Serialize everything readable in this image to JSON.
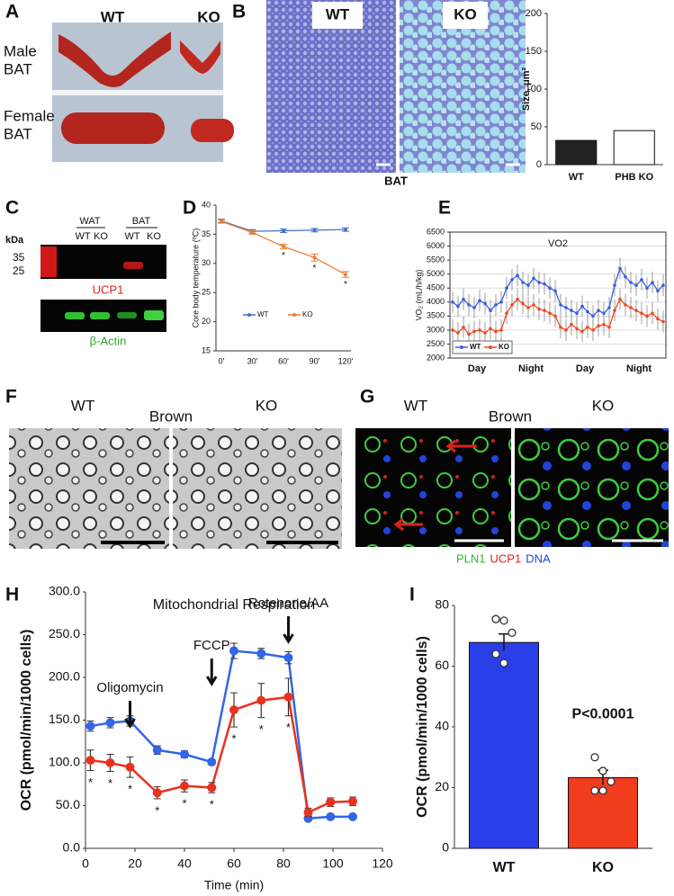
{
  "panel_labels": [
    "A",
    "B",
    "C",
    "D",
    "E",
    "F",
    "G",
    "H",
    "I"
  ],
  "panel_a": {
    "columns": [
      "WT",
      "KO"
    ],
    "rows": [
      [
        "Male",
        "BAT"
      ],
      [
        "Female",
        "BAT"
      ]
    ]
  },
  "panel_b": {
    "image_labels": [
      "WT",
      "KO"
    ],
    "caption": "BAT"
  },
  "panel_c": {
    "unit": "kDa",
    "markers": [
      "35",
      "25"
    ],
    "groups": [
      "WAT",
      "BAT"
    ],
    "lanes": [
      "WT",
      "KO",
      "WT",
      "KO"
    ],
    "blots": [
      "UCP1",
      "β-Actin"
    ]
  },
  "panel_f": {
    "labels": [
      "WT",
      "KO"
    ],
    "title": "Brown"
  },
  "panel_g": {
    "labels": [
      "WT",
      "KO"
    ],
    "title": "Brown",
    "stains": [
      {
        "text": "PLN1",
        "color": "#2eb82e"
      },
      {
        "text": "UCP1",
        "color": "#e0201b"
      },
      {
        "text": "DNA",
        "color": "#2244dd"
      }
    ]
  },
  "chart_data": [
    {
      "type": "bar",
      "ylabel": "Size, μm²",
      "categories": [
        "WT",
        "PHB KO"
      ],
      "values": [
        32,
        45
      ],
      "colors": [
        "#222222",
        "#ffffff"
      ],
      "ylim": [
        0,
        200
      ],
      "yticks": [
        0,
        50,
        100,
        150,
        200
      ]
    },
    {
      "type": "line",
      "ylabel": "Core body temperature (ºC)",
      "categories": [
        "0'",
        "30'",
        "60'",
        "90'",
        "120'"
      ],
      "series": [
        {
          "name": "WT",
          "color": "#4472c4",
          "values": [
            37.3,
            35.5,
            35.6,
            35.7,
            35.8
          ],
          "errors": [
            0.3,
            0.3,
            0.3,
            0.3,
            0.3
          ]
        },
        {
          "name": "KO",
          "color": "#ed7d31",
          "values": [
            37.2,
            35.3,
            32.9,
            31.0,
            28.1
          ],
          "errors": [
            0.3,
            0.3,
            0.4,
            0.6,
            0.5
          ],
          "significance": [
            null,
            null,
            "*",
            "*",
            "*"
          ]
        }
      ],
      "ylim": [
        15,
        40
      ],
      "yticks": [
        15,
        20,
        25,
        30,
        35,
        40
      ],
      "legend": "bottom"
    },
    {
      "type": "line",
      "title": "VO2",
      "ylabel": "VO₂ (mL/h/kg)",
      "period_labels": [
        "Day",
        "Night",
        "Day",
        "Night"
      ],
      "series": [
        {
          "name": "WT",
          "color": "#3a5fe0",
          "values": [
            4000,
            3850,
            4100,
            3900,
            3800,
            4050,
            3950,
            3700,
            3900,
            4000,
            4500,
            4800,
            4950,
            4700,
            4600,
            4850,
            4700,
            4650,
            4500,
            4400,
            3900,
            3800,
            3700,
            3600,
            3850,
            3650,
            3500,
            3700,
            3600,
            3800,
            4600,
            5200,
            4900,
            4700,
            4600,
            4800,
            4500,
            4700,
            4400,
            4600
          ]
        },
        {
          "name": "KO",
          "color": "#ef4b24",
          "values": [
            3000,
            2900,
            3100,
            2850,
            2950,
            3000,
            2900,
            3050,
            2950,
            3000,
            3600,
            3900,
            4100,
            3950,
            3800,
            3900,
            3750,
            3700,
            3600,
            3500,
            3100,
            3000,
            3200,
            3050,
            2950,
            3100,
            3000,
            3150,
            3200,
            3100,
            3700,
            4100,
            3900,
            3800,
            3700,
            3600,
            3500,
            3600,
            3400,
            3300
          ]
        }
      ],
      "ylim": [
        2000,
        6500
      ],
      "yticks": [
        2000,
        2500,
        3000,
        3500,
        4000,
        4500,
        5000,
        5500,
        6000,
        6500
      ],
      "grid": true,
      "legend": "bottom-left"
    },
    {
      "type": "line",
      "title": "Mitochondrial Respiration",
      "xlabel": "Time (min)",
      "ylabel": "OCR (pmol/min/1000 cells)",
      "x": [
        2,
        10,
        18,
        29,
        40,
        51,
        60,
        71,
        82,
        90,
        99,
        108
      ],
      "series": [
        {
          "name": "WT",
          "color": "#3366e6",
          "values": [
            143,
            147,
            149,
            115,
            110,
            101,
            231,
            228,
            223,
            35,
            37,
            37
          ],
          "errors": [
            6,
            6,
            6,
            5,
            4,
            3,
            9,
            6,
            7,
            3,
            2,
            2
          ]
        },
        {
          "name": "KO",
          "color": "#e8321e",
          "values": [
            103,
            100,
            95,
            65,
            73,
            71,
            162,
            173,
            177,
            42,
            54,
            55
          ],
          "errors": [
            12,
            10,
            12,
            7,
            7,
            6,
            20,
            20,
            22,
            5,
            5,
            5
          ],
          "significance": [
            "*",
            "*",
            "*",
            "*",
            "*",
            "*",
            "*",
            "*",
            "*",
            null,
            null,
            null
          ]
        }
      ],
      "xlim": [
        0,
        120
      ],
      "xticks": [
        0,
        20,
        40,
        60,
        80,
        100,
        120
      ],
      "ylim": [
        0,
        300
      ],
      "yticks": [
        {
          "value": 0,
          "label": "0.0"
        },
        {
          "value": 50,
          "label": "50.0"
        },
        {
          "value": 100,
          "label": "100.0"
        },
        {
          "value": 150,
          "label": "150.0"
        },
        {
          "value": 200,
          "label": "200.0"
        },
        {
          "value": 250,
          "label": "250.0"
        },
        {
          "value": 300,
          "label": "300.0"
        }
      ],
      "annotations": [
        "Oligomycin",
        "FCCP",
        "Rotenone/AA"
      ]
    },
    {
      "type": "bar",
      "ylabel": "OCR (pmol/min/1000 cells)",
      "categories": [
        "WT",
        "KO"
      ],
      "values": [
        67.8,
        23.3
      ],
      "errors": [
        2.8,
        2.4
      ],
      "points": [
        [
          75.5,
          75,
          71,
          64,
          61
        ],
        [
          30,
          25.5,
          22,
          19,
          19
        ]
      ],
      "colors": [
        "#2a3ee8",
        "#f23c1e"
      ],
      "ylim": [
        0,
        80
      ],
      "yticks": [
        0,
        20,
        40,
        60,
        80
      ],
      "annotation": "P<0.0001"
    }
  ]
}
